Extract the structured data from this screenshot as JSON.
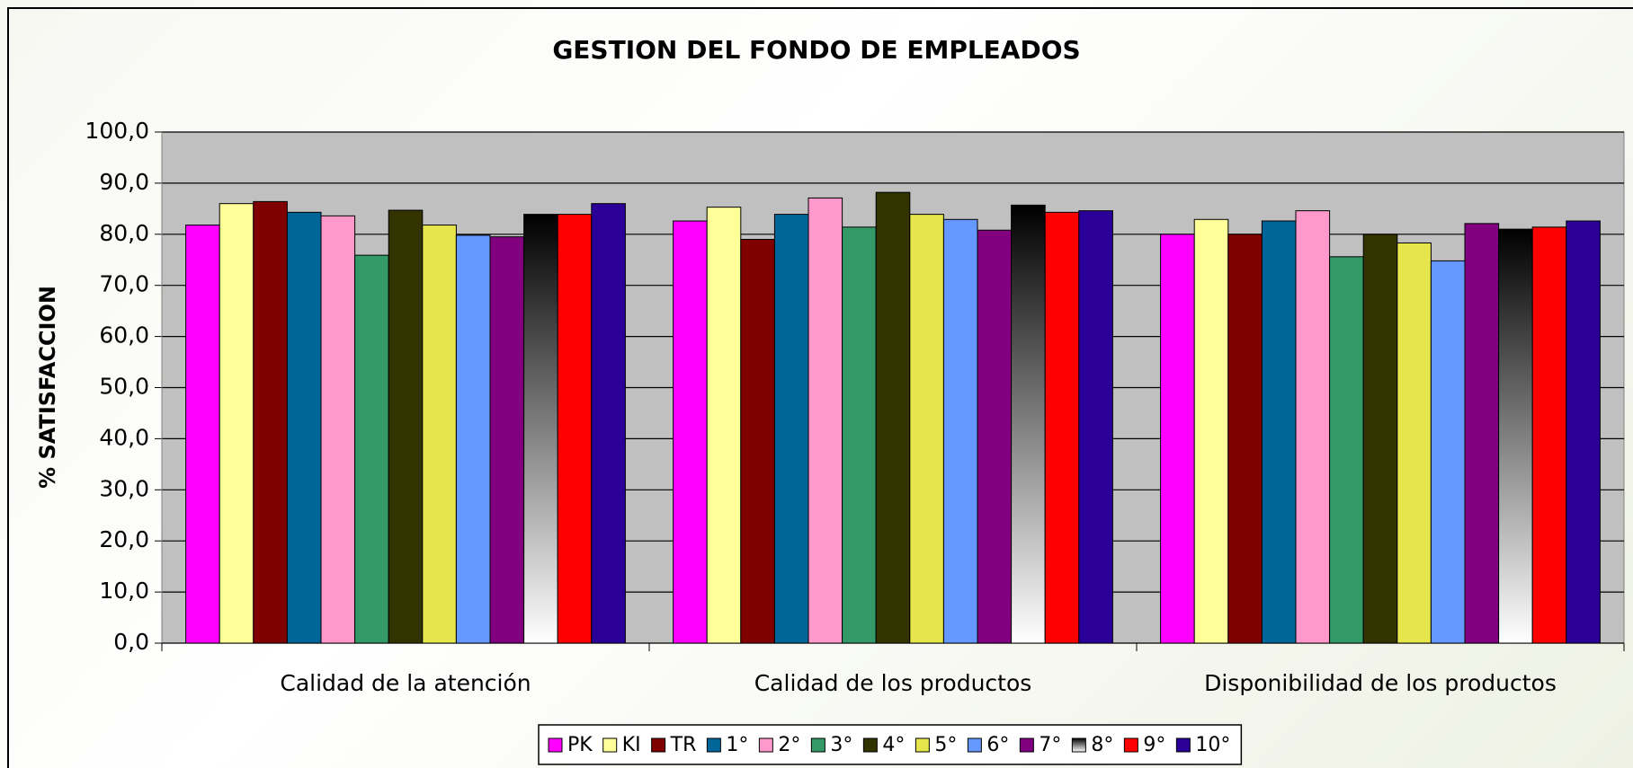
{
  "chart_data": {
    "type": "bar",
    "title": "GESTION DEL FONDO DE EMPLEADOS",
    "y_label": "% SATISFACCION",
    "categories": [
      "Calidad de la atención",
      "Calidad de los productos",
      "Disponibilidad de los productos"
    ],
    "series": [
      {
        "name": "PK",
        "color": "#ff00ff",
        "values": [
          81.8,
          82.6,
          80.0
        ]
      },
      {
        "name": "KI",
        "color": "#ffff99",
        "values": [
          86.0,
          85.3,
          82.9
        ]
      },
      {
        "name": "TR",
        "color": "#800000",
        "values": [
          86.4,
          79.0,
          80.0
        ]
      },
      {
        "name": "1°",
        "color": "#006699",
        "values": [
          84.3,
          83.9,
          82.6
        ]
      },
      {
        "name": "2°",
        "color": "#ff99cc",
        "values": [
          83.6,
          87.1,
          84.6
        ]
      },
      {
        "name": "3°",
        "color": "#339966",
        "values": [
          75.9,
          81.4,
          75.6
        ]
      },
      {
        "name": "4°",
        "color": "#333300",
        "values": [
          84.7,
          88.2,
          80.0
        ]
      },
      {
        "name": "5°",
        "color": "#e6e64c",
        "values": [
          81.8,
          83.9,
          78.3
        ]
      },
      {
        "name": "6°",
        "color": "#6699ff",
        "values": [
          79.8,
          82.9,
          74.8
        ]
      },
      {
        "name": "7°",
        "color": "#800080",
        "values": [
          79.5,
          80.8,
          82.1
        ]
      },
      {
        "name": "8°",
        "color": "#000000",
        "gradient": [
          "#000000",
          "#ffffff"
        ],
        "values": [
          83.9,
          85.7,
          81.0
        ]
      },
      {
        "name": "9°",
        "color": "#ff0000",
        "values": [
          83.9,
          84.3,
          81.4
        ]
      },
      {
        "name": "10°",
        "color": "#2b0099",
        "values": [
          86.0,
          84.6,
          82.6
        ]
      }
    ],
    "ylim": [
      0,
      100
    ],
    "yticks": [
      {
        "value": 0,
        "label": "0,0"
      },
      {
        "value": 10,
        "label": "10,0"
      },
      {
        "value": 20,
        "label": "20,0"
      },
      {
        "value": 30,
        "label": "30,0"
      },
      {
        "value": 40,
        "label": "40,0"
      },
      {
        "value": 50,
        "label": "50,0"
      },
      {
        "value": 60,
        "label": "60,0"
      },
      {
        "value": 70,
        "label": "70,0"
      },
      {
        "value": 80,
        "label": "80,0"
      },
      {
        "value": 90,
        "label": "90,0"
      },
      {
        "value": 100,
        "label": "100,0"
      }
    ],
    "grid": true,
    "legend": "bottom",
    "plot_background": "#c0c0c0"
  }
}
